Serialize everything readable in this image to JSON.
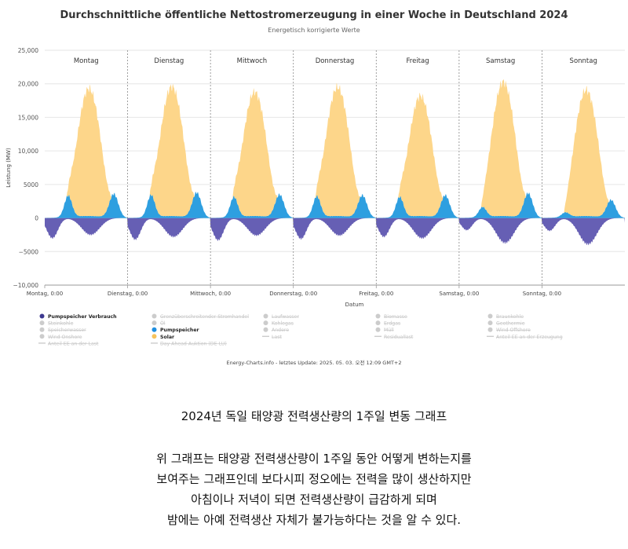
{
  "chart_data": {
    "type": "area",
    "title": "Durchschnittliche öffentliche Nettostromerzeugung in einer Woche in Deutschland 2024",
    "subtitle": "Energetisch korrigierte Werte",
    "ylabel": "Leistung (MW)",
    "xlabel": "Datum",
    "ylim": [
      -10000,
      25000
    ],
    "yticks": [
      25000,
      20000,
      15000,
      10000,
      5000,
      0,
      -5000,
      -10000
    ],
    "ytick_labels": [
      "25,000",
      "20,000",
      "15,000",
      "10,000",
      "5000",
      "0",
      "−5000",
      "−10,000"
    ],
    "days": [
      "Montag",
      "Dienstag",
      "Mittwoch",
      "Donnerstag",
      "Freitag",
      "Samstag",
      "Sonntag"
    ],
    "xtick_labels": [
      "Montag, 0:00",
      "Dienstag, 0:00",
      "Mittwoch, 0:00",
      "Donnerstag, 0:00",
      "Freitag, 0:00",
      "Samstag, 0:00",
      "Sonntag, 0:00"
    ],
    "x_unit": "hour of week",
    "x_range": [
      0,
      168
    ],
    "grid": true,
    "legend_position": "bottom",
    "series": [
      {
        "name": "Solar",
        "color": "#fdd68a",
        "peak_hour_offset": 12.8,
        "daily_peak_mw": [
          19000,
          19300,
          18500,
          19200,
          17900,
          20000,
          18800
        ]
      },
      {
        "name": "Pumpspeicher",
        "color": "#2e9fe0",
        "description_points": "generation peaks ~06:30 and ~20:00",
        "morning_peak_mw": [
          3200,
          3300,
          3000,
          3100,
          3000,
          1500,
          700
        ],
        "evening_peak_mw": [
          3500,
          3700,
          3400,
          3300,
          3300,
          3600,
          2600
        ]
      },
      {
        "name": "Pumpspeicher Verbrauch",
        "color": "#5e56b0",
        "night_min_mw": [
          -3000,
          -3200,
          -3300,
          -3100,
          -2800,
          -1800,
          -1900
        ],
        "midday_min_mw": [
          -2500,
          -2800,
          -2600,
          -2600,
          -3000,
          -3700,
          -3900
        ]
      }
    ],
    "legend": [
      {
        "label": "Pumpspeicher Verbrauch",
        "color": "#3d3990",
        "active": true
      },
      {
        "label": "Grenzüberschreitender Stromhandel",
        "color": "#cccccc",
        "active": false
      },
      {
        "label": "Laufwasser",
        "color": "#cccccc",
        "active": false
      },
      {
        "label": "Biomasse",
        "color": "#cccccc",
        "active": false
      },
      {
        "label": "Braunkohle",
        "color": "#cccccc",
        "active": false
      },
      {
        "label": "Steinkohle",
        "color": "#cccccc",
        "active": false
      },
      {
        "label": "Öl",
        "color": "#cccccc",
        "active": false
      },
      {
        "label": "Kohlegas",
        "color": "#cccccc",
        "active": false
      },
      {
        "label": "Erdgas",
        "color": "#cccccc",
        "active": false
      },
      {
        "label": "Geothermie",
        "color": "#cccccc",
        "active": false
      },
      {
        "label": "Speicherwasser",
        "color": "#cccccc",
        "active": false
      },
      {
        "label": "Pumpspeicher",
        "color": "#1f8fe0",
        "active": true
      },
      {
        "label": "Andere",
        "color": "#cccccc",
        "active": false
      },
      {
        "label": "Müll",
        "color": "#cccccc",
        "active": false
      },
      {
        "label": "Wind Offshore",
        "color": "#cccccc",
        "active": false
      },
      {
        "label": "Wind Onshore",
        "color": "#cccccc",
        "active": false
      },
      {
        "label": "Solar",
        "color": "#f7c35c",
        "active": true
      },
      {
        "label": "Last",
        "color": "#cccccc",
        "active": false,
        "line": true
      },
      {
        "label": "Residuallast",
        "color": "#cccccc",
        "active": false,
        "line": true
      },
      {
        "label": "Anteil EE an der Erzeugung",
        "color": "#cccccc",
        "active": false,
        "line": true
      },
      {
        "label": "Anteil EE an der Last",
        "color": "#cccccc",
        "active": false,
        "line": true
      },
      {
        "label": "Day Ahead Auktion (DE-LU)",
        "color": "#cccccc",
        "active": false,
        "line": true
      }
    ],
    "credit": "Energy-Charts.info - letztes Update: 2025. 05. 03. 오전 12:09 GMT+2"
  },
  "caption": {
    "title": "2024년 독일 태양광 전력생산량의 1주일 변동 그래프",
    "lines": [
      "위 그래프는 태양광 전력생산량이 1주일 동안 어떻게 변하는지를",
      "보여주는 그래프인데 보다시피 정오에는 전력을 많이 생산하지만",
      "아침이나 저녁이 되면 전력생산량이 급감하게 되며",
      "밤에는 아예 전력생산 자체가 불가능하다는 것을 알 수 있다."
    ]
  }
}
